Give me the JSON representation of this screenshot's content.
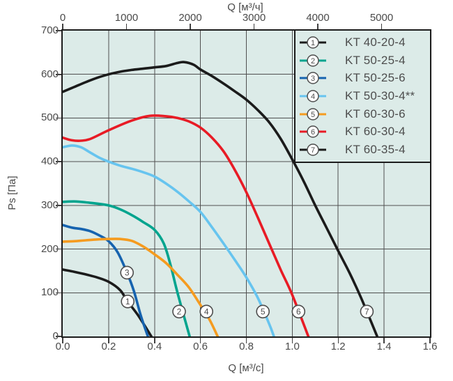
{
  "chart_data": {
    "type": "line",
    "title": "",
    "xlabel_top": "Q [м³/ч]",
    "xlabel_bottom": "Q [м³/c]",
    "ylabel": "Ps [Па]",
    "xlim": [
      0,
      1.6
    ],
    "ylim": [
      0,
      700
    ],
    "unit_factor_top": 3600,
    "x_ticks_top": [
      "0",
      "1000",
      "2000",
      "3000",
      "4000",
      "5000"
    ],
    "x_ticks_bottom": [
      "0.0",
      "0.2",
      "0.4",
      "0.6",
      "0.8",
      "1.0",
      "1.2",
      "1.4",
      "1.6"
    ],
    "y_ticks_left": [
      "0",
      "100",
      "200",
      "300",
      "400",
      "500",
      "600",
      "700"
    ],
    "grid": true,
    "legend_position": "top-right",
    "style": {
      "plot_background": "#dcebe8",
      "grid_color": "#4f4f4f",
      "border_color": "#1c1c1c",
      "text_color": "#4a4a4a",
      "marker_stroke": "#4d4d4d",
      "marker_fill": "#ffffff"
    },
    "series": [
      {
        "num": 1,
        "name": "KT 40-20-4",
        "color": "#1b1b1b",
        "points": [
          [
            0,
            153
          ],
          [
            0.05,
            148
          ],
          [
            0.1,
            142
          ],
          [
            0.15,
            135
          ],
          [
            0.2,
            125
          ],
          [
            0.25,
            106
          ],
          [
            0.283,
            80
          ],
          [
            0.33,
            47
          ],
          [
            0.386,
            0
          ]
        ]
      },
      {
        "num": 2,
        "name": "KT 50-25-4",
        "color": "#00a48e",
        "points": [
          [
            0,
            308
          ],
          [
            0.05,
            309
          ],
          [
            0.1,
            307
          ],
          [
            0.15,
            304
          ],
          [
            0.2,
            300
          ],
          [
            0.25,
            291
          ],
          [
            0.3,
            278
          ],
          [
            0.35,
            262
          ],
          [
            0.4,
            244
          ],
          [
            0.44,
            213
          ],
          [
            0.47,
            163
          ],
          [
            0.5,
            100
          ],
          [
            0.553,
            0
          ]
        ]
      },
      {
        "num": 3,
        "name": "KT 50-25-6",
        "color": "#1663af",
        "points": [
          [
            0,
            255
          ],
          [
            0.04,
            249
          ],
          [
            0.08,
            246
          ],
          [
            0.12,
            241
          ],
          [
            0.16,
            231
          ],
          [
            0.2,
            218
          ],
          [
            0.24,
            192
          ],
          [
            0.28,
            146
          ],
          [
            0.31,
            104
          ],
          [
            0.34,
            48
          ],
          [
            0.371,
            0
          ]
        ]
      },
      {
        "num": 4,
        "name": "KT 50-30-4**",
        "color": "#67c4ef",
        "points": [
          [
            0,
            433
          ],
          [
            0.04,
            437
          ],
          [
            0.08,
            433
          ],
          [
            0.12,
            421
          ],
          [
            0.16,
            409
          ],
          [
            0.2,
            400
          ],
          [
            0.25,
            391
          ],
          [
            0.3,
            384
          ],
          [
            0.35,
            376
          ],
          [
            0.4,
            366
          ],
          [
            0.45,
            350
          ],
          [
            0.5,
            331
          ],
          [
            0.55,
            309
          ],
          [
            0.6,
            285
          ],
          [
            0.65,
            250
          ],
          [
            0.7,
            213
          ],
          [
            0.75,
            175
          ],
          [
            0.8,
            135
          ],
          [
            0.85,
            88
          ],
          [
            0.9,
            28
          ],
          [
            0.92,
            0
          ]
        ]
      },
      {
        "num": 5,
        "name": "KT 60-30-6",
        "color": "#f59b1f",
        "points": [
          [
            0,
            217
          ],
          [
            0.05,
            218
          ],
          [
            0.1,
            220
          ],
          [
            0.15,
            222
          ],
          [
            0.2,
            223
          ],
          [
            0.25,
            223
          ],
          [
            0.3,
            219
          ],
          [
            0.35,
            206
          ],
          [
            0.4,
            188
          ],
          [
            0.45,
            168
          ],
          [
            0.5,
            141
          ],
          [
            0.55,
            112
          ],
          [
            0.6,
            72
          ],
          [
            0.64,
            38
          ],
          [
            0.675,
            0
          ]
        ]
      },
      {
        "num": 6,
        "name": "KT 60-30-4",
        "color": "#e81b25",
        "points": [
          [
            0,
            455
          ],
          [
            0.04,
            449
          ],
          [
            0.08,
            448
          ],
          [
            0.12,
            452
          ],
          [
            0.2,
            472
          ],
          [
            0.3,
            494
          ],
          [
            0.38,
            505
          ],
          [
            0.45,
            504
          ],
          [
            0.5,
            500
          ],
          [
            0.55,
            492
          ],
          [
            0.6,
            478
          ],
          [
            0.65,
            455
          ],
          [
            0.7,
            424
          ],
          [
            0.75,
            381
          ],
          [
            0.8,
            330
          ],
          [
            0.85,
            272
          ],
          [
            0.9,
            212
          ],
          [
            0.95,
            152
          ],
          [
            1.0,
            95
          ],
          [
            1.07,
            0
          ]
        ]
      },
      {
        "num": 7,
        "name": "KT 60-35-4",
        "color": "#1b1b1b",
        "points": [
          [
            0,
            560
          ],
          [
            0.05,
            571
          ],
          [
            0.1,
            582
          ],
          [
            0.15,
            592
          ],
          [
            0.2,
            600
          ],
          [
            0.25,
            606
          ],
          [
            0.3,
            610
          ],
          [
            0.35,
            613
          ],
          [
            0.4,
            616
          ],
          [
            0.45,
            619
          ],
          [
            0.5,
            626
          ],
          [
            0.53,
            628
          ],
          [
            0.57,
            622
          ],
          [
            0.6,
            611
          ],
          [
            0.65,
            596
          ],
          [
            0.7,
            579
          ],
          [
            0.75,
            561
          ],
          [
            0.8,
            542
          ],
          [
            0.85,
            518
          ],
          [
            0.9,
            490
          ],
          [
            0.95,
            452
          ],
          [
            1.0,
            405
          ],
          [
            1.05,
            355
          ],
          [
            1.1,
            300
          ],
          [
            1.15,
            248
          ],
          [
            1.2,
            196
          ],
          [
            1.25,
            145
          ],
          [
            1.3,
            88
          ],
          [
            1.37,
            0
          ]
        ]
      }
    ],
    "curve_markers": [
      {
        "num": 1,
        "q": 0.283,
        "ps": 80
      },
      {
        "num": 2,
        "q": 0.507,
        "ps": 57
      },
      {
        "num": 3,
        "q": 0.28,
        "ps": 146
      },
      {
        "num": 4,
        "q": 0.626,
        "ps": 57
      },
      {
        "num": 5,
        "q": 0.872,
        "ps": 57
      },
      {
        "num": 6,
        "q": 1.027,
        "ps": 57
      },
      {
        "num": 7,
        "q": 1.325,
        "ps": 57
      }
    ]
  }
}
